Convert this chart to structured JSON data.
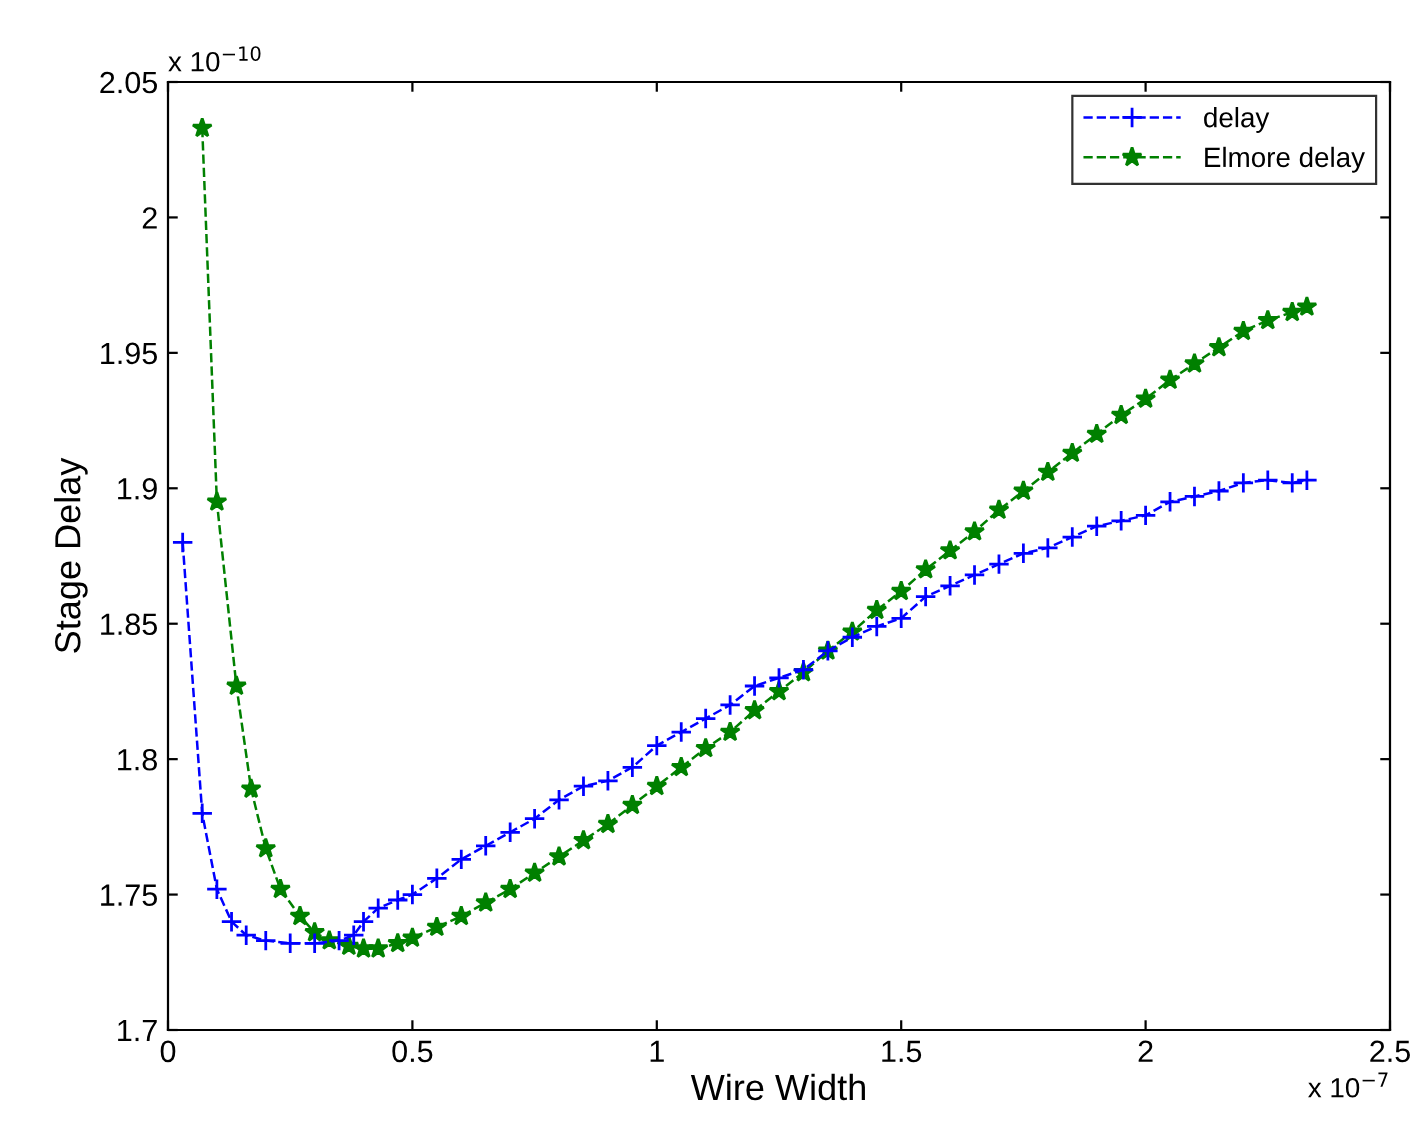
{
  "chart_data": {
    "type": "line",
    "xlabel": "Wire Width",
    "ylabel": "Stage Delay",
    "xlim": [
      0,
      2.5
    ],
    "xticks": [
      0,
      0.5,
      1,
      1.5,
      2,
      2.5
    ],
    "ylim": [
      1.7,
      2.05
    ],
    "yticks": [
      1.7,
      1.75,
      1.8,
      1.85,
      1.9,
      1.95,
      2,
      2.05
    ],
    "annotations": [
      "x 10$^{−7}$",
      "x 10$^{−10}$"
    ],
    "legend": "top right",
    "grid": false,
    "line_style": "dashed",
    "series": [
      {
        "name": "delay",
        "color": "#0000ff",
        "marker": "cross",
        "x": [
          0.03,
          0.07,
          0.1,
          0.13,
          0.16,
          0.2,
          0.25,
          0.3,
          0.35,
          0.38,
          0.4,
          0.43,
          0.47,
          0.5,
          0.55,
          0.6,
          0.65,
          0.7,
          0.75,
          0.8,
          0.85,
          0.9,
          0.95,
          1.0,
          1.05,
          1.1,
          1.15,
          1.2,
          1.25,
          1.3,
          1.35,
          1.4,
          1.45,
          1.5,
          1.55,
          1.6,
          1.65,
          1.7,
          1.75,
          1.8,
          1.85,
          1.9,
          1.95,
          2.0,
          2.05,
          2.1,
          2.15,
          2.2,
          2.25,
          2.3,
          2.33
        ],
        "values": [
          1.88,
          1.78,
          1.752,
          1.74,
          1.735,
          1.733,
          1.732,
          1.732,
          1.733,
          1.735,
          1.74,
          1.745,
          1.748,
          1.75,
          1.756,
          1.763,
          1.768,
          1.773,
          1.778,
          1.785,
          1.79,
          1.792,
          1.797,
          1.805,
          1.81,
          1.815,
          1.82,
          1.827,
          1.83,
          1.833,
          1.84,
          1.845,
          1.849,
          1.852,
          1.86,
          1.864,
          1.868,
          1.872,
          1.876,
          1.878,
          1.882,
          1.886,
          1.888,
          1.89,
          1.895,
          1.897,
          1.899,
          1.902,
          1.903,
          1.902,
          1.903
        ]
      },
      {
        "name": "Elmore delay",
        "color": "#008000",
        "marker": "star",
        "x": [
          0.07,
          0.1,
          0.14,
          0.17,
          0.2,
          0.23,
          0.27,
          0.3,
          0.33,
          0.37,
          0.4,
          0.43,
          0.47,
          0.5,
          0.55,
          0.6,
          0.65,
          0.7,
          0.75,
          0.8,
          0.85,
          0.9,
          0.95,
          1.0,
          1.05,
          1.1,
          1.15,
          1.2,
          1.25,
          1.3,
          1.35,
          1.4,
          1.45,
          1.5,
          1.55,
          1.6,
          1.65,
          1.7,
          1.75,
          1.8,
          1.85,
          1.9,
          1.95,
          2.0,
          2.05,
          2.1,
          2.15,
          2.2,
          2.25,
          2.3,
          2.33
        ],
        "values": [
          2.033,
          1.895,
          1.827,
          1.789,
          1.767,
          1.752,
          1.742,
          1.736,
          1.733,
          1.731,
          1.73,
          1.73,
          1.732,
          1.734,
          1.738,
          1.742,
          1.747,
          1.752,
          1.758,
          1.764,
          1.77,
          1.776,
          1.783,
          1.79,
          1.797,
          1.804,
          1.81,
          1.818,
          1.825,
          1.832,
          1.84,
          1.847,
          1.855,
          1.862,
          1.87,
          1.877,
          1.884,
          1.892,
          1.899,
          1.906,
          1.913,
          1.92,
          1.927,
          1.933,
          1.94,
          1.946,
          1.952,
          1.958,
          1.962,
          1.965,
          1.967
        ]
      }
    ]
  }
}
